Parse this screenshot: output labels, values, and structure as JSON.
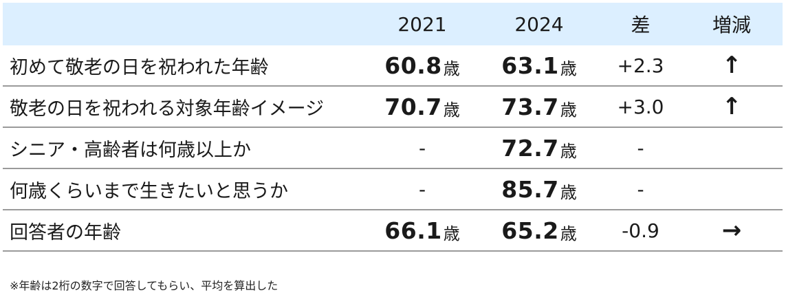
{
  "headers": {
    "label": "",
    "y2021": "2021",
    "y2024": "2024",
    "diff": "差",
    "trend": "増減"
  },
  "unit": "歳",
  "rows": [
    {
      "label": "初めて敬老の日を祝われた年齢",
      "y2021": "60.8",
      "y2024": "63.1",
      "diff": "+2.3",
      "trend": "↑",
      "trend_icon": "arrow-up-icon"
    },
    {
      "label": "敬老の日を祝われる対象年齢イメージ",
      "y2021": "70.7",
      "y2024": "73.7",
      "diff": "+3.0",
      "trend": "↑",
      "trend_icon": "arrow-up-icon"
    },
    {
      "label": "シニア・高齢者は何歳以上か",
      "y2021": "-",
      "y2024": "72.7",
      "diff": "-",
      "trend": "",
      "trend_icon": ""
    },
    {
      "label": "何歳くらいまで生きたいと思うか",
      "y2021": "-",
      "y2024": "85.7",
      "diff": "-",
      "trend": "",
      "trend_icon": ""
    },
    {
      "label": "回答者の年齢",
      "y2021": "66.1",
      "y2024": "65.2",
      "diff": "-0.9",
      "trend": "→",
      "trend_icon": "arrow-right-icon"
    }
  ],
  "note": "※年齢は2桁の数字で回答してもらい、平均を算出した",
  "colors": {
    "header_bg": "#dcefff",
    "rule": "#9a9a9a",
    "text": "#1a1a1a"
  }
}
